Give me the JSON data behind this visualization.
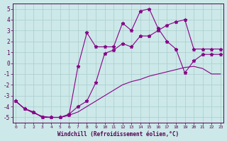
{
  "xlabel": "Windchill (Refroidissement éolien,°C)",
  "background_color": "#cce8e8",
  "grid_color": "#aacccc",
  "line_color": "#880088",
  "xlim": [
    -0.3,
    23.3
  ],
  "ylim": [
    -5.5,
    5.5
  ],
  "yticks": [
    -5,
    -4,
    -3,
    -2,
    -1,
    0,
    1,
    2,
    3,
    4,
    5
  ],
  "xticks": [
    0,
    1,
    2,
    3,
    4,
    5,
    6,
    7,
    8,
    9,
    10,
    11,
    12,
    13,
    14,
    15,
    16,
    17,
    18,
    19,
    20,
    21,
    22,
    23
  ],
  "x": [
    0,
    1,
    2,
    3,
    4,
    5,
    6,
    7,
    8,
    9,
    10,
    11,
    12,
    13,
    14,
    15,
    16,
    17,
    18,
    19,
    20,
    21,
    22,
    23
  ],
  "line1_y": [
    -3.5,
    -4.2,
    -4.5,
    -5.0,
    -5.0,
    -5.0,
    -4.8,
    -0.3,
    2.8,
    1.5,
    1.5,
    1.5,
    3.7,
    3.0,
    4.8,
    5.0,
    3.2,
    2.0,
    1.3,
    -0.9,
    0.2,
    0.8,
    0.8,
    0.8
  ],
  "line2_y": [
    -3.5,
    -4.2,
    -4.5,
    -5.0,
    -5.0,
    -5.0,
    -4.7,
    -4.0,
    -3.5,
    -1.8,
    0.9,
    1.2,
    1.8,
    1.5,
    2.5,
    2.5,
    3.0,
    3.5,
    3.8,
    4.0,
    1.3,
    1.3,
    1.3,
    1.3
  ],
  "line3_y": [
    -3.5,
    -4.2,
    -4.6,
    -4.9,
    -5.0,
    -5.0,
    -4.8,
    -4.5,
    -4.0,
    -3.5,
    -3.0,
    -2.5,
    -2.0,
    -1.7,
    -1.5,
    -1.2,
    -1.0,
    -0.8,
    -0.6,
    -0.4,
    -0.3,
    -0.5,
    -1.0,
    -1.0
  ]
}
